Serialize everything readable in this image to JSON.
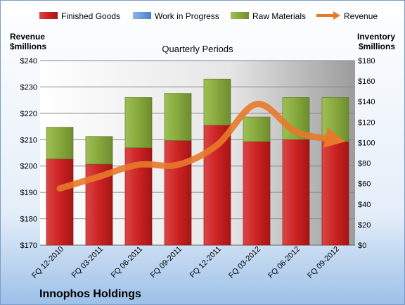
{
  "chart_data": {
    "type": "bar",
    "title": "Quarterly Periods",
    "brand": "Innophos Holdings",
    "categories": [
      "FQ 12-2010",
      "FQ 03-2011",
      "FQ 06-2011",
      "FQ 09-2011",
      "FQ 12-2011",
      "FQ 03-2012",
      "FQ 06-2012",
      "FQ 09-2012"
    ],
    "left_axis": {
      "title_line1": "Revenue",
      "title_line2": "$millions",
      "range": [
        170,
        240
      ],
      "ticks": [
        170,
        180,
        190,
        200,
        210,
        220,
        230,
        240
      ],
      "tick_labels": [
        "$170",
        "$180",
        "$190",
        "$200",
        "$210",
        "$220",
        "$230",
        "$240"
      ]
    },
    "right_axis": {
      "title_line1": "Inventory",
      "title_line2": "$millions",
      "range": [
        0,
        180
      ],
      "ticks": [
        0,
        20,
        40,
        60,
        80,
        100,
        120,
        140,
        160,
        180
      ],
      "tick_labels": [
        "$0",
        "$20",
        "$40",
        "$60",
        "$80",
        "$100",
        "$120",
        "$140",
        "$160",
        "$180"
      ]
    },
    "series": [
      {
        "name": "Finished Goods",
        "kind": "bar-stack",
        "axis": "right",
        "color": "#CC2222",
        "values": [
          84,
          79,
          95,
          102,
          117,
          101,
          103,
          101
        ]
      },
      {
        "name": "Work in Progress",
        "kind": "bar-stack",
        "axis": "right",
        "color": "#5B8FD6",
        "values": [
          0,
          0,
          0,
          0,
          0,
          0,
          0,
          0
        ]
      },
      {
        "name": "Raw Materials",
        "kind": "bar-stack",
        "axis": "right",
        "color": "#86A83C",
        "values": [
          31,
          27,
          49,
          46,
          45,
          24,
          41,
          43
        ]
      },
      {
        "name": "Revenue",
        "kind": "line",
        "axis": "left",
        "color": "#E8792A",
        "values": [
          191.5,
          196.0,
          200.5,
          200.5,
          208.0,
          223.5,
          213.0,
          210.0
        ]
      }
    ],
    "grid": true,
    "legend_position": "top"
  }
}
